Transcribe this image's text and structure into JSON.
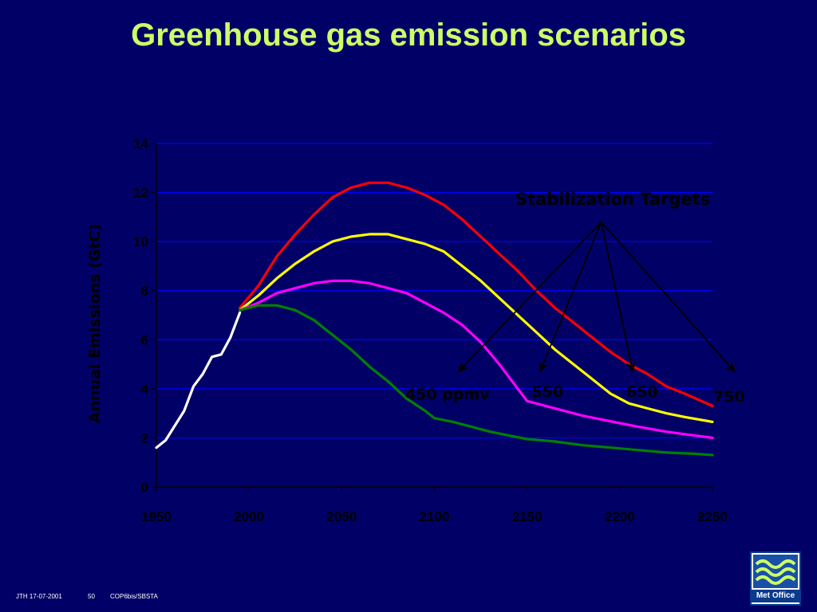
{
  "slide": {
    "title": "Greenhouse gas emission scenarios"
  },
  "footer": {
    "author_date": "JTH 17-07-2001",
    "page_number": "50",
    "event": "COP6bis/SBSTA"
  },
  "logo": {
    "text": "Met Office",
    "colors": {
      "waves": "#ccff66",
      "box": "#1a4fa8",
      "band": "#0a3a8c"
    }
  },
  "colors": {
    "background": "#000066",
    "plot_background": "#000066",
    "gridline": "#0000ff",
    "title": "#ccff66",
    "text": "#000000",
    "arrow": "#000000"
  },
  "chart_data": {
    "type": "line",
    "title": "",
    "xlabel": "",
    "ylabel": "Annual Emissions (GtC)",
    "xlim": [
      1950,
      2250
    ],
    "ylim": [
      0,
      14
    ],
    "xticks": [
      1950,
      2000,
      2050,
      2100,
      2150,
      2200,
      2250
    ],
    "yticks": [
      0,
      2,
      4,
      6,
      8,
      10,
      12,
      14
    ],
    "grid": "horizontal",
    "legend": "none",
    "series": [
      {
        "color": "#ffffff",
        "points": [
          [
            1950,
            1.6
          ],
          [
            1955,
            1.9
          ],
          [
            1960,
            2.5
          ],
          [
            1965,
            3.1
          ],
          [
            1970,
            4.1
          ],
          [
            1975,
            4.6
          ],
          [
            1980,
            5.3
          ],
          [
            1985,
            5.4
          ],
          [
            1990,
            6.1
          ],
          [
            1995,
            7.1
          ]
        ]
      },
      {
        "color": "#ff0000",
        "points": [
          [
            1995,
            7.3
          ],
          [
            2005,
            8.2
          ],
          [
            2015,
            9.4
          ],
          [
            2025,
            10.3
          ],
          [
            2035,
            11.1
          ],
          [
            2045,
            11.8
          ],
          [
            2055,
            12.2
          ],
          [
            2065,
            12.4
          ],
          [
            2075,
            12.4
          ],
          [
            2085,
            12.2
          ],
          [
            2095,
            11.9
          ],
          [
            2105,
            11.5
          ],
          [
            2115,
            10.9
          ],
          [
            2125,
            10.2
          ],
          [
            2135,
            9.5
          ],
          [
            2145,
            8.8
          ],
          [
            2155,
            8.0
          ],
          [
            2165,
            7.3
          ],
          [
            2175,
            6.7
          ],
          [
            2185,
            6.1
          ],
          [
            2195,
            5.5
          ],
          [
            2205,
            5.0
          ],
          [
            2215,
            4.6
          ],
          [
            2225,
            4.1
          ],
          [
            2235,
            3.8
          ],
          [
            2250,
            3.3
          ]
        ]
      },
      {
        "color": "#ffff00",
        "points": [
          [
            1995,
            7.2
          ],
          [
            2005,
            7.8
          ],
          [
            2015,
            8.5
          ],
          [
            2025,
            9.1
          ],
          [
            2035,
            9.6
          ],
          [
            2045,
            10.0
          ],
          [
            2055,
            10.2
          ],
          [
            2065,
            10.3
          ],
          [
            2075,
            10.3
          ],
          [
            2085,
            10.1
          ],
          [
            2095,
            9.9
          ],
          [
            2105,
            9.6
          ],
          [
            2115,
            9.0
          ],
          [
            2125,
            8.4
          ],
          [
            2135,
            7.7
          ],
          [
            2145,
            7.0
          ],
          [
            2155,
            6.3
          ],
          [
            2165,
            5.6
          ],
          [
            2175,
            5.0
          ],
          [
            2185,
            4.4
          ],
          [
            2195,
            3.8
          ],
          [
            2205,
            3.4
          ],
          [
            2215,
            3.2
          ],
          [
            2225,
            3.0
          ],
          [
            2235,
            2.85
          ],
          [
            2250,
            2.65
          ]
        ]
      },
      {
        "color": "#ff00ff",
        "points": [
          [
            1995,
            7.2
          ],
          [
            2005,
            7.5
          ],
          [
            2015,
            7.9
          ],
          [
            2025,
            8.1
          ],
          [
            2035,
            8.3
          ],
          [
            2045,
            8.4
          ],
          [
            2055,
            8.4
          ],
          [
            2065,
            8.3
          ],
          [
            2075,
            8.1
          ],
          [
            2085,
            7.9
          ],
          [
            2095,
            7.5
          ],
          [
            2105,
            7.1
          ],
          [
            2115,
            6.6
          ],
          [
            2125,
            5.9
          ],
          [
            2135,
            5.0
          ],
          [
            2145,
            4.0
          ],
          [
            2150,
            3.5
          ],
          [
            2160,
            3.3
          ],
          [
            2170,
            3.1
          ],
          [
            2180,
            2.9
          ],
          [
            2190,
            2.75
          ],
          [
            2200,
            2.6
          ],
          [
            2210,
            2.45
          ],
          [
            2225,
            2.25
          ],
          [
            2240,
            2.1
          ],
          [
            2250,
            2.0
          ]
        ]
      },
      {
        "color": "#008000",
        "points": [
          [
            1995,
            7.2
          ],
          [
            2005,
            7.4
          ],
          [
            2015,
            7.4
          ],
          [
            2025,
            7.2
          ],
          [
            2035,
            6.8
          ],
          [
            2045,
            6.2
          ],
          [
            2055,
            5.6
          ],
          [
            2065,
            4.9
          ],
          [
            2075,
            4.3
          ],
          [
            2085,
            3.6
          ],
          [
            2095,
            3.1
          ],
          [
            2100,
            2.8
          ],
          [
            2110,
            2.65
          ],
          [
            2120,
            2.45
          ],
          [
            2130,
            2.25
          ],
          [
            2140,
            2.1
          ],
          [
            2150,
            1.95
          ],
          [
            2165,
            1.85
          ],
          [
            2180,
            1.7
          ],
          [
            2195,
            1.6
          ],
          [
            2210,
            1.5
          ],
          [
            2225,
            1.4
          ],
          [
            2240,
            1.35
          ],
          [
            2250,
            1.3
          ]
        ]
      }
    ],
    "annotations": {
      "heading": "Stabilization Targets",
      "labels": [
        {
          "text": "450 ppmv",
          "x": 2107,
          "y": 3.8
        },
        {
          "text": "550",
          "x": 2161,
          "y": 3.9
        },
        {
          "text": "650",
          "x": 2212,
          "y": 3.9
        },
        {
          "text": "750",
          "x": 2259,
          "y": 3.7
        }
      ],
      "arrow_origin": {
        "x": 2190,
        "y": 10.8
      },
      "arrow_targets": [
        {
          "x": 2113,
          "y": 4.7
        },
        {
          "x": 2157,
          "y": 4.7
        },
        {
          "x": 2207,
          "y": 4.7
        },
        {
          "x": 2262,
          "y": 4.7
        }
      ]
    }
  }
}
